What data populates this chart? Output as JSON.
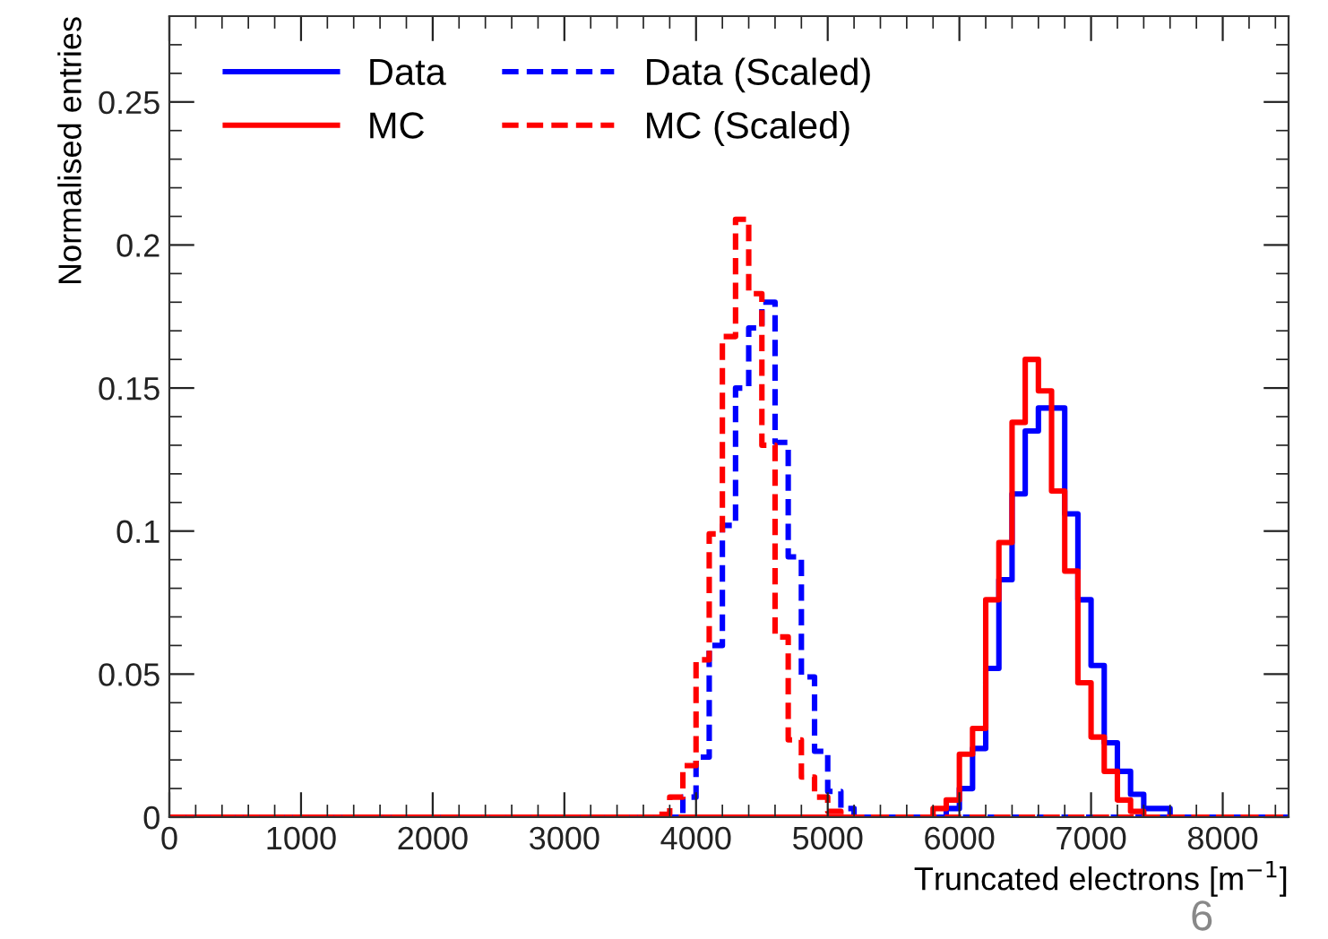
{
  "chart_data": {
    "type": "histogram",
    "xlabel": "Truncated electrons [m$^{−1}$]",
    "ylabel": "Normalised entries",
    "bins": [
      0,
      3700,
      3800,
      3900,
      4000,
      4100,
      4200,
      4300,
      4400,
      4500,
      4600,
      4700,
      4800,
      4900,
      5000,
      5100,
      5200,
      5300,
      5400,
      5500,
      5600,
      5700,
      5800,
      5900,
      6000,
      6100,
      6200,
      6300,
      6400,
      6500,
      6600,
      6700,
      6800,
      6900,
      7000,
      7100,
      7200,
      7300,
      7400,
      7500,
      7600,
      7700,
      8500
    ],
    "series": [
      {
        "name": "Data",
        "color": "#0000ff",
        "line_style": "solid",
        "values": [
          0,
          0,
          0,
          0,
          0,
          0,
          0,
          0,
          0,
          0,
          0,
          0,
          0,
          0,
          0,
          0,
          0,
          0,
          0,
          0,
          0,
          0,
          0,
          0.003,
          0.01,
          0.024,
          0.052,
          0.083,
          0.113,
          0.135,
          0.143,
          0.143,
          0.106,
          0.076,
          0.053,
          0.026,
          0.016,
          0.008,
          0.003,
          0.003,
          0,
          0
        ]
      },
      {
        "name": "MC",
        "color": "#ff0000",
        "line_style": "solid",
        "values": [
          0,
          0,
          0,
          0,
          0,
          0,
          0,
          0,
          0,
          0,
          0,
          0,
          0,
          0,
          0,
          0,
          0,
          0,
          0,
          0,
          0,
          0,
          0.003,
          0.006,
          0.022,
          0.031,
          0.076,
          0.096,
          0.138,
          0.16,
          0.149,
          0.114,
          0.086,
          0.047,
          0.028,
          0.016,
          0.006,
          0.002,
          0,
          0,
          0,
          0
        ]
      },
      {
        "name": "Data (Scaled)",
        "color": "#0000ff",
        "line_style": "dashed",
        "values": [
          0,
          0,
          0,
          0.007,
          0.021,
          0.06,
          0.102,
          0.15,
          0.171,
          0.18,
          0.131,
          0.091,
          0.049,
          0.023,
          0.009,
          0.003,
          0,
          0,
          0,
          0,
          0,
          0,
          0,
          0,
          0,
          0,
          0,
          0,
          0,
          0,
          0,
          0,
          0,
          0,
          0,
          0,
          0,
          0,
          0,
          0,
          0,
          0
        ]
      },
      {
        "name": "MC (Scaled)",
        "color": "#ff0000",
        "line_style": "dashed",
        "values": [
          0,
          0.001,
          0.007,
          0.018,
          0.055,
          0.099,
          0.168,
          0.209,
          0.183,
          0.13,
          0.063,
          0.027,
          0.014,
          0.007,
          0.002,
          0,
          0,
          0,
          0,
          0,
          0,
          0,
          0,
          0,
          0,
          0,
          0,
          0,
          0,
          0,
          0,
          0,
          0,
          0,
          0,
          0,
          0,
          0,
          0,
          0,
          0,
          0
        ]
      }
    ],
    "xlim": [
      0,
      8500
    ],
    "xticks": [
      0,
      1000,
      2000,
      3000,
      4000,
      5000,
      6000,
      7000,
      8000
    ],
    "ylim": [
      0,
      0.28
    ],
    "yticks": [
      0,
      0.05,
      0.1,
      0.15,
      0.2,
      0.25
    ],
    "grid": false,
    "legend": "top left",
    "annotations": [
      "6"
    ]
  }
}
